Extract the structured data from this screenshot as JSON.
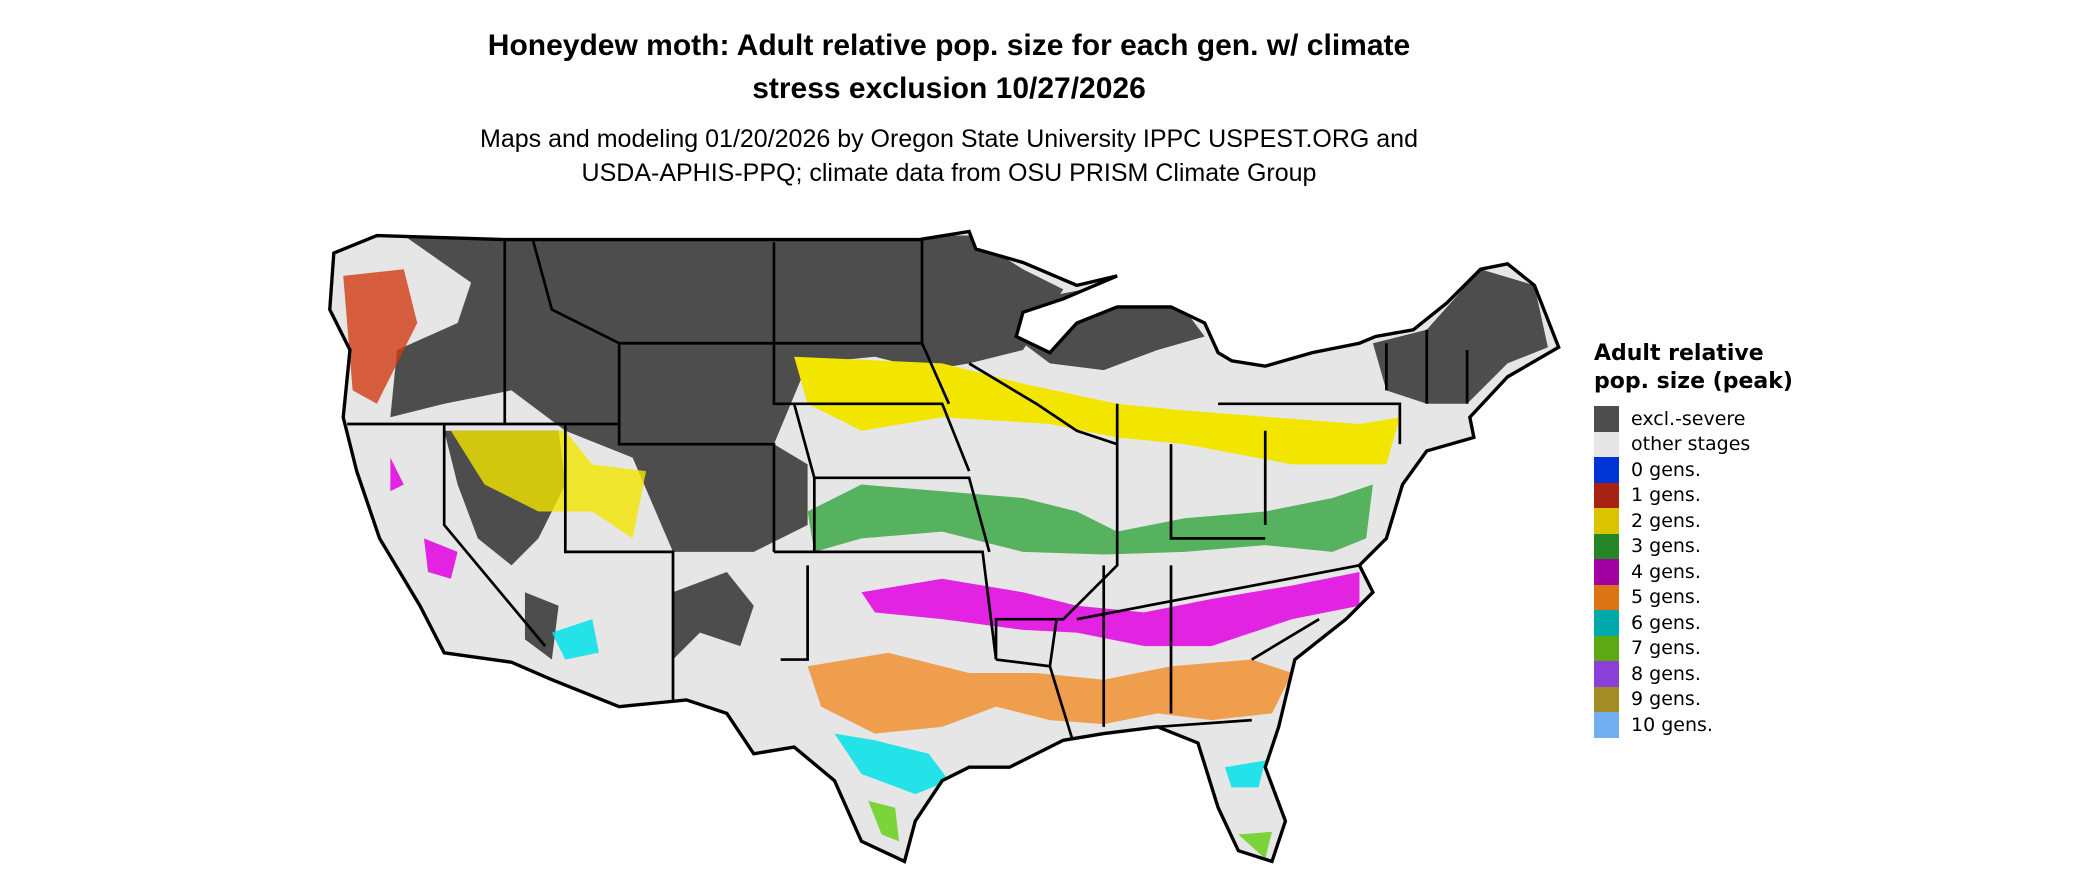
{
  "title": {
    "line1": "Honeydew moth: Adult relative pop. size for each gen. w/ climate",
    "line2": "stress exclusion 10/27/2026"
  },
  "subtitle": {
    "line1": "Maps and modeling 01/20/2026 by Oregon State University IPPC USPEST.ORG and",
    "line2": "USDA-APHIS-PPQ; climate data from OSU PRISM Climate Group"
  },
  "legend": {
    "title": "Adult relative pop. size (peak)",
    "items": [
      {
        "label": "excl.-severe",
        "color": "#4d4d4d"
      },
      {
        "label": "other stages",
        "color": "#e6e6e6"
      },
      {
        "label": "0 gens.",
        "color": "#0033d6"
      },
      {
        "label": "1 gens.",
        "color": "#a82214"
      },
      {
        "label": "2 gens.",
        "color": "#dac400"
      },
      {
        "label": "3 gens.",
        "color": "#258628"
      },
      {
        "label": "4 gens.",
        "color": "#a300a3"
      },
      {
        "label": "5 gens.",
        "color": "#db7414"
      },
      {
        "label": "6 gens.",
        "color": "#00a9a9"
      },
      {
        "label": "7 gens.",
        "color": "#5da815"
      },
      {
        "label": "8 gens.",
        "color": "#8a3fd8"
      },
      {
        "label": "9 gens.",
        "color": "#a38b25"
      },
      {
        "label": "10 gens.",
        "color": "#72aef0"
      }
    ]
  },
  "map_colors": {
    "background": "#e6e6e6",
    "excluded": "#4d4d4d",
    "yellow": "#f2e600",
    "green": "#3ca845",
    "magenta": "#e000e0",
    "orange": "#f0963c",
    "cyan": "#00e0e8",
    "red": "#d23c14",
    "border": "#000000"
  }
}
